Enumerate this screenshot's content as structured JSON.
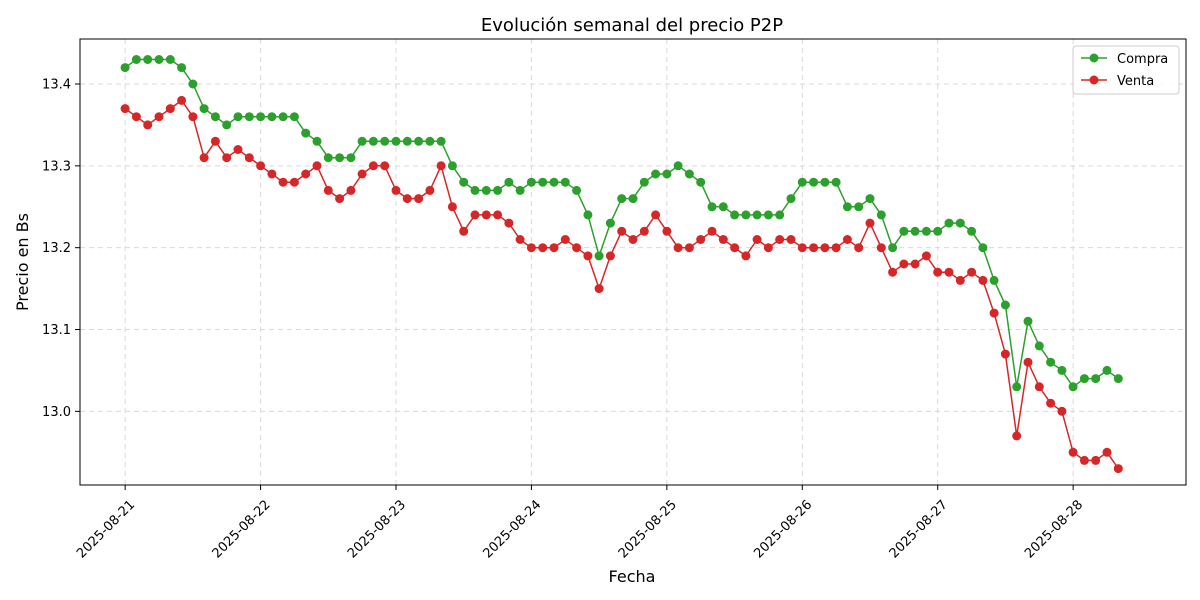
{
  "chart_data": {
    "type": "line",
    "title": "Evolución semanal del precio P2P",
    "xlabel": "Fecha",
    "ylabel": "Precio en Bs",
    "x_type": "date",
    "xlim": [
      "2025-08-20T16:00",
      "2025-08-28T20:00"
    ],
    "ylim": [
      12.91,
      13.455
    ],
    "x_ticks": [
      "2025-08-21",
      "2025-08-22",
      "2025-08-23",
      "2025-08-24",
      "2025-08-25",
      "2025-08-26",
      "2025-08-27",
      "2025-08-28"
    ],
    "y_ticks": [
      13.0,
      13.1,
      13.2,
      13.3,
      13.4
    ],
    "y_tick_labels": [
      "13.0",
      "13.1",
      "13.2",
      "13.3",
      "13.4"
    ],
    "grid": true,
    "legend_position": "top-right",
    "series": [
      {
        "name": "Compra",
        "color": "#2ca02c",
        "points": [
          [
            "2025-08-21T00:00",
            13.42
          ],
          [
            "2025-08-21T02:00",
            13.43
          ],
          [
            "2025-08-21T04:00",
            13.43
          ],
          [
            "2025-08-21T06:00",
            13.43
          ],
          [
            "2025-08-21T08:00",
            13.43
          ],
          [
            "2025-08-21T10:00",
            13.42
          ],
          [
            "2025-08-21T12:00",
            13.4
          ],
          [
            "2025-08-21T14:00",
            13.37
          ],
          [
            "2025-08-21T16:00",
            13.36
          ],
          [
            "2025-08-21T18:00",
            13.35
          ],
          [
            "2025-08-21T20:00",
            13.36
          ],
          [
            "2025-08-21T22:00",
            13.36
          ],
          [
            "2025-08-22T00:00",
            13.36
          ],
          [
            "2025-08-22T02:00",
            13.36
          ],
          [
            "2025-08-22T04:00",
            13.36
          ],
          [
            "2025-08-22T06:00",
            13.36
          ],
          [
            "2025-08-22T08:00",
            13.34
          ],
          [
            "2025-08-22T10:00",
            13.33
          ],
          [
            "2025-08-22T12:00",
            13.31
          ],
          [
            "2025-08-22T14:00",
            13.31
          ],
          [
            "2025-08-22T16:00",
            13.31
          ],
          [
            "2025-08-22T18:00",
            13.33
          ],
          [
            "2025-08-22T20:00",
            13.33
          ],
          [
            "2025-08-22T22:00",
            13.33
          ],
          [
            "2025-08-23T00:00",
            13.33
          ],
          [
            "2025-08-23T02:00",
            13.33
          ],
          [
            "2025-08-23T04:00",
            13.33
          ],
          [
            "2025-08-23T06:00",
            13.33
          ],
          [
            "2025-08-23T08:00",
            13.33
          ],
          [
            "2025-08-23T10:00",
            13.3
          ],
          [
            "2025-08-23T12:00",
            13.28
          ],
          [
            "2025-08-23T14:00",
            13.27
          ],
          [
            "2025-08-23T16:00",
            13.27
          ],
          [
            "2025-08-23T18:00",
            13.27
          ],
          [
            "2025-08-23T20:00",
            13.28
          ],
          [
            "2025-08-23T22:00",
            13.27
          ],
          [
            "2025-08-24T00:00",
            13.28
          ],
          [
            "2025-08-24T02:00",
            13.28
          ],
          [
            "2025-08-24T04:00",
            13.28
          ],
          [
            "2025-08-24T06:00",
            13.28
          ],
          [
            "2025-08-24T08:00",
            13.27
          ],
          [
            "2025-08-24T10:00",
            13.24
          ],
          [
            "2025-08-24T12:00",
            13.19
          ],
          [
            "2025-08-24T14:00",
            13.23
          ],
          [
            "2025-08-24T16:00",
            13.26
          ],
          [
            "2025-08-24T18:00",
            13.26
          ],
          [
            "2025-08-24T20:00",
            13.28
          ],
          [
            "2025-08-24T22:00",
            13.29
          ],
          [
            "2025-08-25T00:00",
            13.29
          ],
          [
            "2025-08-25T02:00",
            13.3
          ],
          [
            "2025-08-25T04:00",
            13.29
          ],
          [
            "2025-08-25T06:00",
            13.28
          ],
          [
            "2025-08-25T08:00",
            13.25
          ],
          [
            "2025-08-25T10:00",
            13.25
          ],
          [
            "2025-08-25T12:00",
            13.24
          ],
          [
            "2025-08-25T14:00",
            13.24
          ],
          [
            "2025-08-25T16:00",
            13.24
          ],
          [
            "2025-08-25T18:00",
            13.24
          ],
          [
            "2025-08-25T20:00",
            13.24
          ],
          [
            "2025-08-25T22:00",
            13.26
          ],
          [
            "2025-08-26T00:00",
            13.28
          ],
          [
            "2025-08-26T02:00",
            13.28
          ],
          [
            "2025-08-26T04:00",
            13.28
          ],
          [
            "2025-08-26T06:00",
            13.28
          ],
          [
            "2025-08-26T08:00",
            13.25
          ],
          [
            "2025-08-26T10:00",
            13.25
          ],
          [
            "2025-08-26T12:00",
            13.26
          ],
          [
            "2025-08-26T14:00",
            13.24
          ],
          [
            "2025-08-26T16:00",
            13.2
          ],
          [
            "2025-08-26T18:00",
            13.22
          ],
          [
            "2025-08-26T20:00",
            13.22
          ],
          [
            "2025-08-26T22:00",
            13.22
          ],
          [
            "2025-08-27T00:00",
            13.22
          ],
          [
            "2025-08-27T02:00",
            13.23
          ],
          [
            "2025-08-27T04:00",
            13.23
          ],
          [
            "2025-08-27T06:00",
            13.22
          ],
          [
            "2025-08-27T08:00",
            13.2
          ],
          [
            "2025-08-27T10:00",
            13.16
          ],
          [
            "2025-08-27T12:00",
            13.13
          ],
          [
            "2025-08-27T14:00",
            13.03
          ],
          [
            "2025-08-27T16:00",
            13.11
          ],
          [
            "2025-08-27T18:00",
            13.08
          ],
          [
            "2025-08-27T20:00",
            13.06
          ],
          [
            "2025-08-27T22:00",
            13.05
          ],
          [
            "2025-08-28T00:00",
            13.03
          ],
          [
            "2025-08-28T02:00",
            13.04
          ],
          [
            "2025-08-28T04:00",
            13.04
          ],
          [
            "2025-08-28T06:00",
            13.05
          ],
          [
            "2025-08-28T08:00",
            13.04
          ]
        ]
      },
      {
        "name": "Venta",
        "color": "#d62728",
        "points": [
          [
            "2025-08-21T00:00",
            13.37
          ],
          [
            "2025-08-21T02:00",
            13.36
          ],
          [
            "2025-08-21T04:00",
            13.35
          ],
          [
            "2025-08-21T06:00",
            13.36
          ],
          [
            "2025-08-21T08:00",
            13.37
          ],
          [
            "2025-08-21T10:00",
            13.38
          ],
          [
            "2025-08-21T12:00",
            13.36
          ],
          [
            "2025-08-21T14:00",
            13.31
          ],
          [
            "2025-08-21T16:00",
            13.33
          ],
          [
            "2025-08-21T18:00",
            13.31
          ],
          [
            "2025-08-21T20:00",
            13.32
          ],
          [
            "2025-08-21T22:00",
            13.31
          ],
          [
            "2025-08-22T00:00",
            13.3
          ],
          [
            "2025-08-22T02:00",
            13.29
          ],
          [
            "2025-08-22T04:00",
            13.28
          ],
          [
            "2025-08-22T06:00",
            13.28
          ],
          [
            "2025-08-22T08:00",
            13.29
          ],
          [
            "2025-08-22T10:00",
            13.3
          ],
          [
            "2025-08-22T12:00",
            13.27
          ],
          [
            "2025-08-22T14:00",
            13.26
          ],
          [
            "2025-08-22T16:00",
            13.27
          ],
          [
            "2025-08-22T18:00",
            13.29
          ],
          [
            "2025-08-22T20:00",
            13.3
          ],
          [
            "2025-08-22T22:00",
            13.3
          ],
          [
            "2025-08-23T00:00",
            13.27
          ],
          [
            "2025-08-23T02:00",
            13.26
          ],
          [
            "2025-08-23T04:00",
            13.26
          ],
          [
            "2025-08-23T06:00",
            13.27
          ],
          [
            "2025-08-23T08:00",
            13.3
          ],
          [
            "2025-08-23T10:00",
            13.25
          ],
          [
            "2025-08-23T12:00",
            13.22
          ],
          [
            "2025-08-23T14:00",
            13.24
          ],
          [
            "2025-08-23T16:00",
            13.24
          ],
          [
            "2025-08-23T18:00",
            13.24
          ],
          [
            "2025-08-23T20:00",
            13.23
          ],
          [
            "2025-08-23T22:00",
            13.21
          ],
          [
            "2025-08-24T00:00",
            13.2
          ],
          [
            "2025-08-24T02:00",
            13.2
          ],
          [
            "2025-08-24T04:00",
            13.2
          ],
          [
            "2025-08-24T06:00",
            13.21
          ],
          [
            "2025-08-24T08:00",
            13.2
          ],
          [
            "2025-08-24T10:00",
            13.19
          ],
          [
            "2025-08-24T12:00",
            13.15
          ],
          [
            "2025-08-24T14:00",
            13.19
          ],
          [
            "2025-08-24T16:00",
            13.22
          ],
          [
            "2025-08-24T18:00",
            13.21
          ],
          [
            "2025-08-24T20:00",
            13.22
          ],
          [
            "2025-08-24T22:00",
            13.24
          ],
          [
            "2025-08-25T00:00",
            13.22
          ],
          [
            "2025-08-25T02:00",
            13.2
          ],
          [
            "2025-08-25T04:00",
            13.2
          ],
          [
            "2025-08-25T06:00",
            13.21
          ],
          [
            "2025-08-25T08:00",
            13.22
          ],
          [
            "2025-08-25T10:00",
            13.21
          ],
          [
            "2025-08-25T12:00",
            13.2
          ],
          [
            "2025-08-25T14:00",
            13.19
          ],
          [
            "2025-08-25T16:00",
            13.21
          ],
          [
            "2025-08-25T18:00",
            13.2
          ],
          [
            "2025-08-25T20:00",
            13.21
          ],
          [
            "2025-08-25T22:00",
            13.21
          ],
          [
            "2025-08-26T00:00",
            13.2
          ],
          [
            "2025-08-26T02:00",
            13.2
          ],
          [
            "2025-08-26T04:00",
            13.2
          ],
          [
            "2025-08-26T06:00",
            13.2
          ],
          [
            "2025-08-26T08:00",
            13.21
          ],
          [
            "2025-08-26T10:00",
            13.2
          ],
          [
            "2025-08-26T12:00",
            13.23
          ],
          [
            "2025-08-26T14:00",
            13.2
          ],
          [
            "2025-08-26T16:00",
            13.17
          ],
          [
            "2025-08-26T18:00",
            13.18
          ],
          [
            "2025-08-26T20:00",
            13.18
          ],
          [
            "2025-08-26T22:00",
            13.19
          ],
          [
            "2025-08-27T00:00",
            13.17
          ],
          [
            "2025-08-27T02:00",
            13.17
          ],
          [
            "2025-08-27T04:00",
            13.16
          ],
          [
            "2025-08-27T06:00",
            13.17
          ],
          [
            "2025-08-27T08:00",
            13.16
          ],
          [
            "2025-08-27T10:00",
            13.12
          ],
          [
            "2025-08-27T12:00",
            13.07
          ],
          [
            "2025-08-27T14:00",
            12.97
          ],
          [
            "2025-08-27T16:00",
            13.06
          ],
          [
            "2025-08-27T18:00",
            13.03
          ],
          [
            "2025-08-27T20:00",
            13.01
          ],
          [
            "2025-08-27T22:00",
            13.0
          ],
          [
            "2025-08-28T00:00",
            12.95
          ],
          [
            "2025-08-28T02:00",
            12.94
          ],
          [
            "2025-08-28T04:00",
            12.94
          ],
          [
            "2025-08-28T06:00",
            12.95
          ],
          [
            "2025-08-28T08:00",
            12.93
          ]
        ]
      }
    ]
  }
}
